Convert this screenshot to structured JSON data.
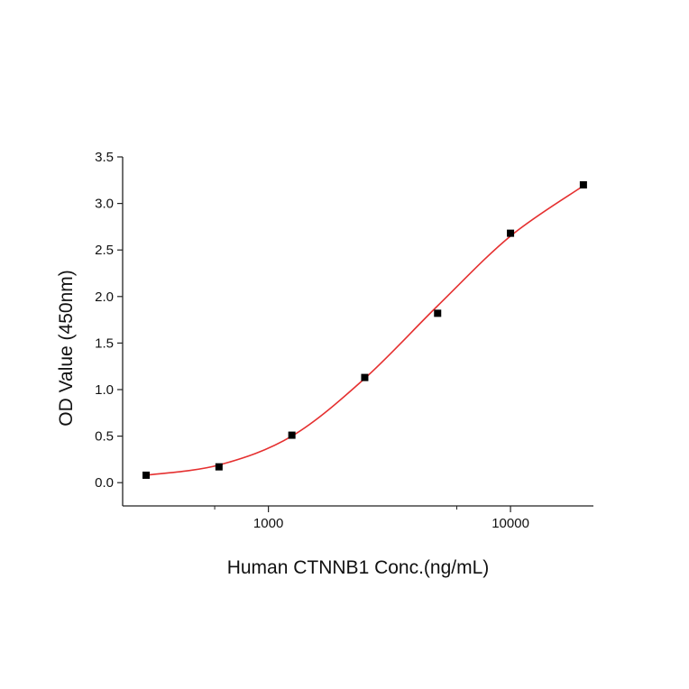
{
  "chart_data": {
    "type": "scatter",
    "title": "",
    "xlabel": "Human CTNNB1 Conc.(ng/mL)",
    "ylabel": "OD Value (450nm)",
    "x_scale": "log",
    "xlim": [
      250,
      22000
    ],
    "ylim": [
      -0.25,
      3.5
    ],
    "x_ticks": [
      {
        "value": 1000,
        "label": "1000"
      },
      {
        "value": 10000,
        "label": "10000"
      }
    ],
    "x_minor_ticks": [
      600,
      6000
    ],
    "y_ticks": [
      {
        "value": 0.0,
        "label": "0.0"
      },
      {
        "value": 0.5,
        "label": "0.5"
      },
      {
        "value": 1.0,
        "label": "1.0"
      },
      {
        "value": 1.5,
        "label": "1.5"
      },
      {
        "value": 2.0,
        "label": "2.0"
      },
      {
        "value": 2.5,
        "label": "2.5"
      },
      {
        "value": 3.0,
        "label": "3.0"
      },
      {
        "value": 3.5,
        "label": "3.5"
      }
    ],
    "grid": false,
    "legend": "none",
    "series": [
      {
        "style": "markers",
        "color": "#000000",
        "marker": "square",
        "x": [
          312.5,
          625,
          1250,
          2500,
          5000,
          10000,
          20000
        ],
        "y": [
          0.08,
          0.17,
          0.51,
          1.13,
          1.82,
          2.68,
          3.2
        ]
      },
      {
        "style": "line",
        "color": "#e53030",
        "x": [
          312.5,
          625,
          1250,
          2500,
          5000,
          10000,
          20000
        ],
        "y": [
          0.08,
          0.19,
          0.5,
          1.12,
          1.9,
          2.65,
          3.19
        ]
      }
    ]
  }
}
